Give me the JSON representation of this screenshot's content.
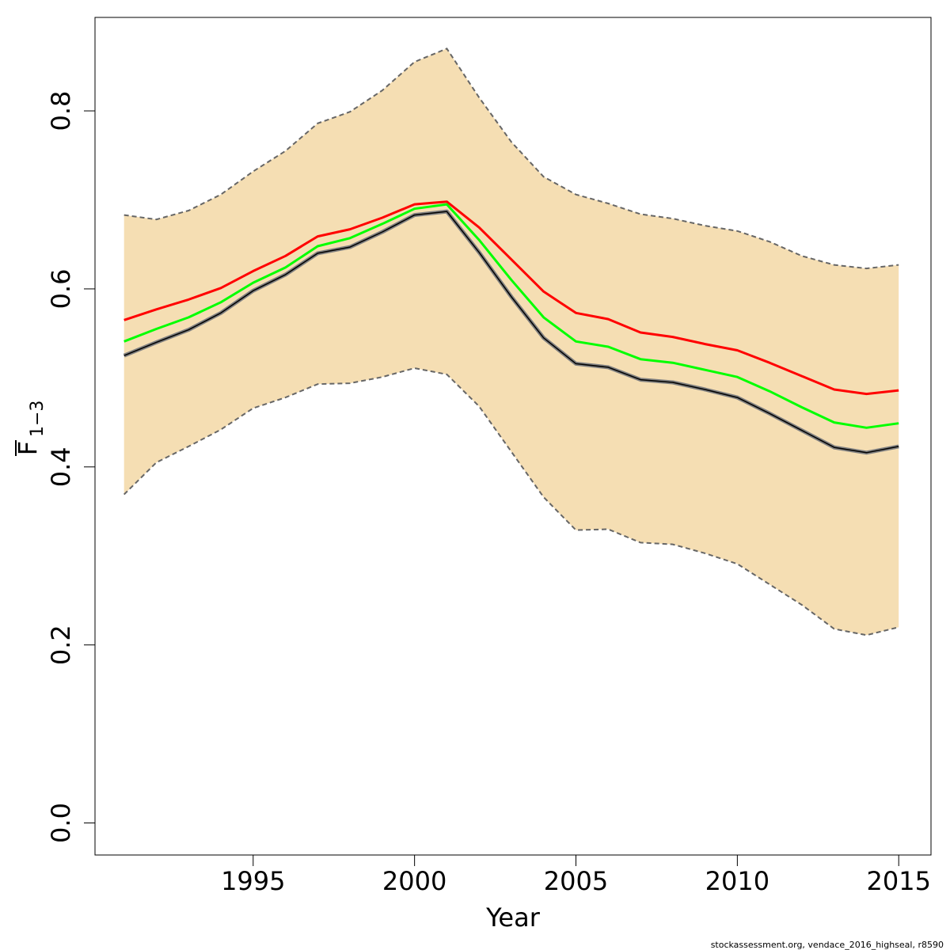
{
  "chart_data": {
    "type": "line",
    "xlabel": "Year",
    "ylabel_main": "F",
    "ylabel_sub": "1−3",
    "xlim": [
      1990.1,
      2016.0
    ],
    "ylim": [
      -0.036,
      0.905
    ],
    "x_ticks": [
      1995,
      2000,
      2005,
      2010,
      2015
    ],
    "y_ticks": [
      0.0,
      0.2,
      0.4,
      0.6,
      0.8
    ],
    "x_tick_labels": [
      "1995",
      "2000",
      "2005",
      "2010",
      "2015"
    ],
    "y_tick_labels": [
      "0.0",
      "0.2",
      "0.4",
      "0.6",
      "0.8"
    ],
    "grid": false,
    "x": [
      1991,
      1992,
      1993,
      1994,
      1995,
      1996,
      1997,
      1998,
      1999,
      2000,
      2001,
      2002,
      2003,
      2004,
      2005,
      2006,
      2007,
      2008,
      2009,
      2010,
      2011,
      2012,
      2013,
      2014,
      2015
    ],
    "confidence_band": {
      "color": "#F5DEB3",
      "border_color": "#666666",
      "upper": [
        0.683,
        0.678,
        0.688,
        0.706,
        0.732,
        0.755,
        0.786,
        0.799,
        0.823,
        0.855,
        0.87,
        0.815,
        0.765,
        0.726,
        0.706,
        0.696,
        0.684,
        0.679,
        0.671,
        0.665,
        0.653,
        0.637,
        0.627,
        0.623,
        0.627
      ],
      "lower": [
        0.369,
        0.405,
        0.423,
        0.442,
        0.466,
        0.478,
        0.493,
        0.494,
        0.501,
        0.511,
        0.504,
        0.468,
        0.417,
        0.366,
        0.329,
        0.33,
        0.315,
        0.313,
        0.303,
        0.291,
        0.268,
        0.245,
        0.218,
        0.211,
        0.22
      ]
    },
    "series": [
      {
        "color": "#FF0000",
        "values": [
          0.565,
          0.577,
          0.588,
          0.601,
          0.62,
          0.637,
          0.659,
          0.667,
          0.68,
          0.695,
          0.698,
          0.669,
          0.633,
          0.597,
          0.573,
          0.566,
          0.551,
          0.546,
          0.538,
          0.531,
          0.517,
          0.502,
          0.487,
          0.482,
          0.486
        ]
      },
      {
        "color": "#00FF00",
        "values": [
          0.541,
          0.555,
          0.568,
          0.585,
          0.607,
          0.624,
          0.648,
          0.657,
          0.673,
          0.69,
          0.695,
          0.655,
          0.61,
          0.568,
          0.541,
          0.535,
          0.521,
          0.517,
          0.509,
          0.501,
          0.485,
          0.467,
          0.45,
          0.444,
          0.449
        ]
      },
      {
        "color": "#000000",
        "outline_color": "#808080",
        "values": [
          0.525,
          0.54,
          0.554,
          0.573,
          0.598,
          0.616,
          0.64,
          0.647,
          0.664,
          0.683,
          0.687,
          0.641,
          0.591,
          0.545,
          0.516,
          0.512,
          0.498,
          0.495,
          0.487,
          0.478,
          0.46,
          0.441,
          0.422,
          0.416,
          0.423
        ]
      }
    ]
  },
  "caption": "stockassessment.org, vendace_2016_highseal, r8590"
}
